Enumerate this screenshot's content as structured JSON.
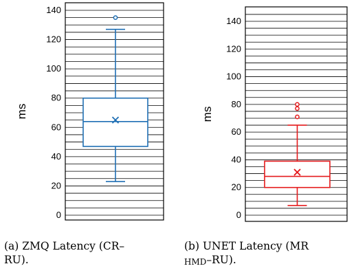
{
  "chart_data": [
    {
      "type": "box",
      "ylabel": "ms",
      "ylim": [
        0,
        140
      ],
      "yticks": [
        0,
        20,
        40,
        60,
        80,
        100,
        120,
        140
      ],
      "color": "#1f6fb4",
      "stats": {
        "min": 23,
        "q1": 47,
        "median": 64,
        "q3": 80,
        "max": 127,
        "mean": 65
      },
      "outliers": [
        135
      ],
      "caption": {
        "prefix": "(a) ZMQ Latency (CR–",
        "suffix": "RU)."
      }
    },
    {
      "type": "box",
      "ylabel": "ms",
      "ylim": [
        0,
        140
      ],
      "yticks": [
        0,
        20,
        40,
        60,
        80,
        100,
        120,
        140
      ],
      "color": "#e41a1c",
      "stats": {
        "min": 7,
        "q1": 20,
        "median": 28,
        "q3": 39,
        "max": 65,
        "mean": 31
      },
      "outliers": [
        71,
        77,
        80
      ],
      "caption": {
        "prefix": "(b) UNET Latency (MR",
        "small": "HMD",
        "suffix": "–RU)."
      }
    }
  ]
}
